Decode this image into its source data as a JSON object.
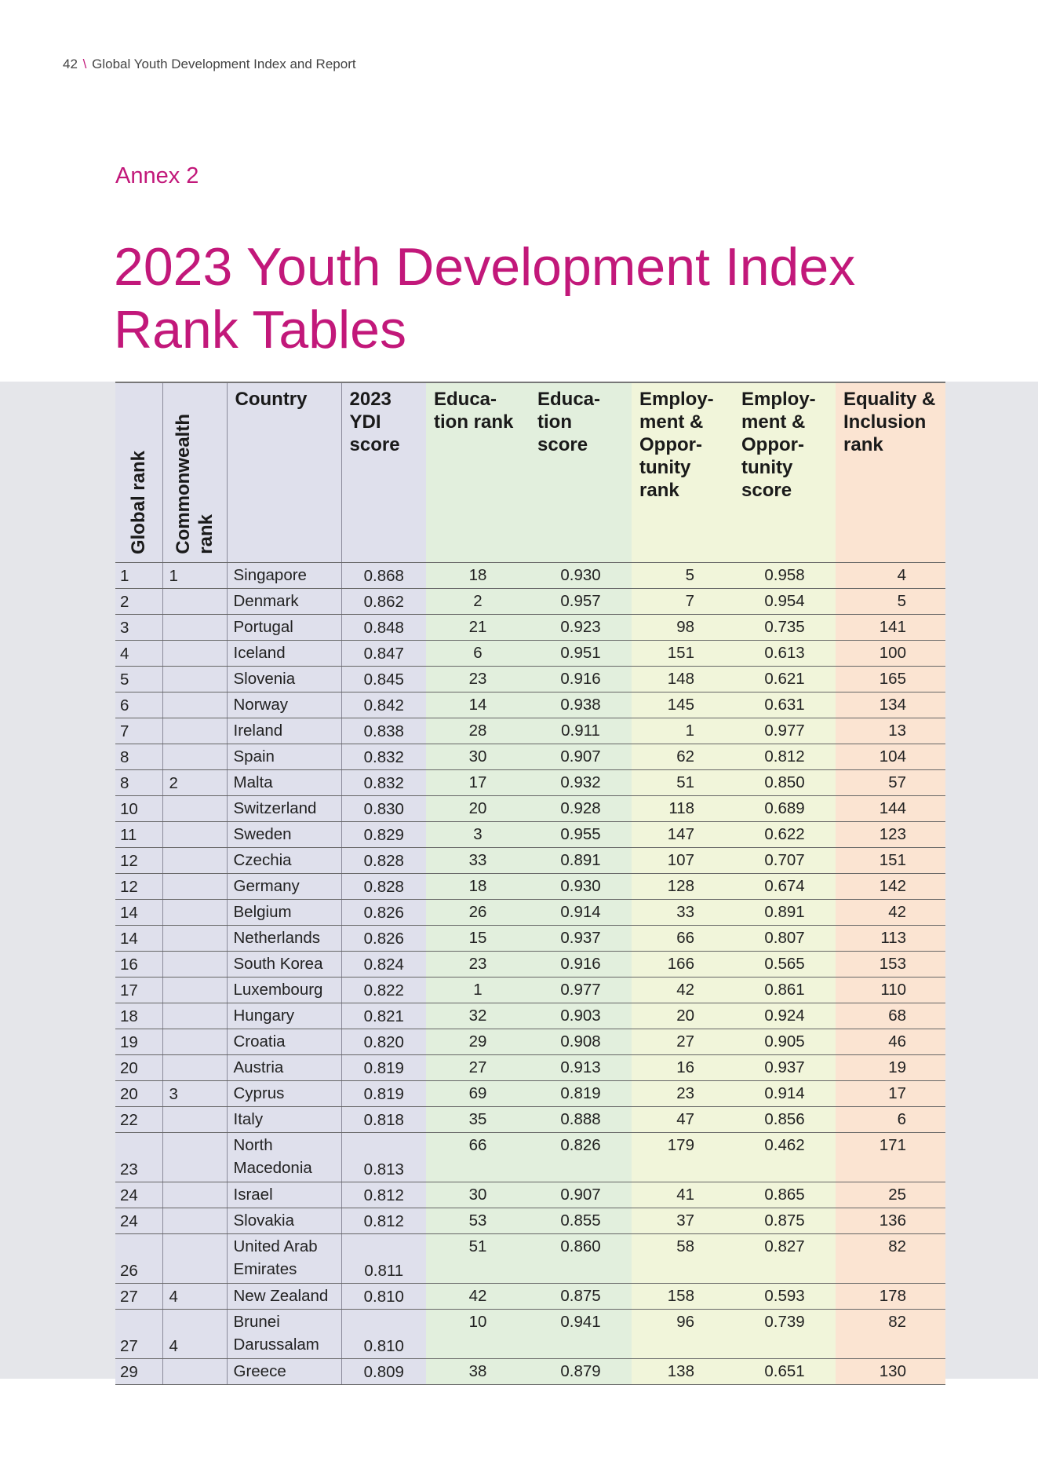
{
  "header": {
    "page_number": "42",
    "separator": "\\",
    "publication": "Global Youth Development Index and Report"
  },
  "annex_label": "Annex 2",
  "title_line1": "2023 Youth Development Index",
  "title_line2": "Rank Tables",
  "table": {
    "columns": {
      "global_rank": "Global rank",
      "commonwealth_rank_1": "Commonwealth",
      "commonwealth_rank_2": "rank",
      "country": "Country",
      "ydi_score": "2023 YDI score",
      "education_rank": "Educa-tion rank",
      "education_score": "Educa-tion score",
      "employment_rank": "Employ-ment & Oppor-tunity rank",
      "employment_score": "Employ-ment & Oppor-tunity score",
      "equality_rank": "Equality & Inclusion rank"
    },
    "colors": {
      "lavender": "#dfe0ec",
      "green": "#e2efdd",
      "yellow": "#f1f5da",
      "orange": "#fbe4d2",
      "accent": "#c2187a"
    },
    "rows": [
      {
        "global": "1",
        "cw": "1",
        "country": "Singapore",
        "ydi": "0.868",
        "edr": "18",
        "eds": "0.930",
        "emr": "5",
        "ems": "0.958",
        "eqr": "4"
      },
      {
        "global": "2",
        "cw": "",
        "country": "Denmark",
        "ydi": "0.862",
        "edr": "2",
        "eds": "0.957",
        "emr": "7",
        "ems": "0.954",
        "eqr": "5"
      },
      {
        "global": "3",
        "cw": "",
        "country": "Portugal",
        "ydi": "0.848",
        "edr": "21",
        "eds": "0.923",
        "emr": "98",
        "ems": "0.735",
        "eqr": "141"
      },
      {
        "global": "4",
        "cw": "",
        "country": "Iceland",
        "ydi": "0.847",
        "edr": "6",
        "eds": "0.951",
        "emr": "151",
        "ems": "0.613",
        "eqr": "100"
      },
      {
        "global": "5",
        "cw": "",
        "country": "Slovenia",
        "ydi": "0.845",
        "edr": "23",
        "eds": "0.916",
        "emr": "148",
        "ems": "0.621",
        "eqr": "165"
      },
      {
        "global": "6",
        "cw": "",
        "country": "Norway",
        "ydi": "0.842",
        "edr": "14",
        "eds": "0.938",
        "emr": "145",
        "ems": "0.631",
        "eqr": "134"
      },
      {
        "global": "7",
        "cw": "",
        "country": "Ireland",
        "ydi": "0.838",
        "edr": "28",
        "eds": "0.911",
        "emr": "1",
        "ems": "0.977",
        "eqr": "13"
      },
      {
        "global": "8",
        "cw": "",
        "country": "Spain",
        "ydi": "0.832",
        "edr": "30",
        "eds": "0.907",
        "emr": "62",
        "ems": "0.812",
        "eqr": "104"
      },
      {
        "global": "8",
        "cw": "2",
        "country": "Malta",
        "ydi": "0.832",
        "edr": "17",
        "eds": "0.932",
        "emr": "51",
        "ems": "0.850",
        "eqr": "57"
      },
      {
        "global": "10",
        "cw": "",
        "country": "Switzerland",
        "ydi": "0.830",
        "edr": "20",
        "eds": "0.928",
        "emr": "118",
        "ems": "0.689",
        "eqr": "144"
      },
      {
        "global": "11",
        "cw": "",
        "country": "Sweden",
        "ydi": "0.829",
        "edr": "3",
        "eds": "0.955",
        "emr": "147",
        "ems": "0.622",
        "eqr": "123"
      },
      {
        "global": "12",
        "cw": "",
        "country": "Czechia",
        "ydi": "0.828",
        "edr": "33",
        "eds": "0.891",
        "emr": "107",
        "ems": "0.707",
        "eqr": "151"
      },
      {
        "global": "12",
        "cw": "",
        "country": "Germany",
        "ydi": "0.828",
        "edr": "18",
        "eds": "0.930",
        "emr": "128",
        "ems": "0.674",
        "eqr": "142"
      },
      {
        "global": "14",
        "cw": "",
        "country": "Belgium",
        "ydi": "0.826",
        "edr": "26",
        "eds": "0.914",
        "emr": "33",
        "ems": "0.891",
        "eqr": "42"
      },
      {
        "global": "14",
        "cw": "",
        "country": "Netherlands",
        "ydi": "0.826",
        "edr": "15",
        "eds": "0.937",
        "emr": "66",
        "ems": "0.807",
        "eqr": "113"
      },
      {
        "global": "16",
        "cw": "",
        "country": "South Korea",
        "ydi": "0.824",
        "edr": "23",
        "eds": "0.916",
        "emr": "166",
        "ems": "0.565",
        "eqr": "153"
      },
      {
        "global": "17",
        "cw": "",
        "country": "Luxembourg",
        "ydi": "0.822",
        "edr": "1",
        "eds": "0.977",
        "emr": "42",
        "ems": "0.861",
        "eqr": "110"
      },
      {
        "global": "18",
        "cw": "",
        "country": "Hungary",
        "ydi": "0.821",
        "edr": "32",
        "eds": "0.903",
        "emr": "20",
        "ems": "0.924",
        "eqr": "68"
      },
      {
        "global": "19",
        "cw": "",
        "country": "Croatia",
        "ydi": "0.820",
        "edr": "29",
        "eds": "0.908",
        "emr": "27",
        "ems": "0.905",
        "eqr": "46"
      },
      {
        "global": "20",
        "cw": "",
        "country": "Austria",
        "ydi": "0.819",
        "edr": "27",
        "eds": "0.913",
        "emr": "16",
        "ems": "0.937",
        "eqr": "19"
      },
      {
        "global": "20",
        "cw": "3",
        "country": "Cyprus",
        "ydi": "0.819",
        "edr": "69",
        "eds": "0.819",
        "emr": "23",
        "ems": "0.914",
        "eqr": "17"
      },
      {
        "global": "22",
        "cw": "",
        "country": "Italy",
        "ydi": "0.818",
        "edr": "35",
        "eds": "0.888",
        "emr": "47",
        "ems": "0.856",
        "eqr": "6"
      },
      {
        "global": "23",
        "cw": "",
        "country": "North Macedonia",
        "ydi": "0.813",
        "edr": "66",
        "eds": "0.826",
        "emr": "179",
        "ems": "0.462",
        "eqr": "171"
      },
      {
        "global": "24",
        "cw": "",
        "country": "Israel",
        "ydi": "0.812",
        "edr": "30",
        "eds": "0.907",
        "emr": "41",
        "ems": "0.865",
        "eqr": "25"
      },
      {
        "global": "24",
        "cw": "",
        "country": "Slovakia",
        "ydi": "0.812",
        "edr": "53",
        "eds": "0.855",
        "emr": "37",
        "ems": "0.875",
        "eqr": "136"
      },
      {
        "global": "26",
        "cw": "",
        "country": "United Arab Emirates",
        "ydi": "0.811",
        "edr": "51",
        "eds": "0.860",
        "emr": "58",
        "ems": "0.827",
        "eqr": "82"
      },
      {
        "global": "27",
        "cw": "4",
        "country": "New Zealand",
        "ydi": "0.810",
        "edr": "42",
        "eds": "0.875",
        "emr": "158",
        "ems": "0.593",
        "eqr": "178"
      },
      {
        "global": "27",
        "cw": "4",
        "country": "Brunei Darussalam",
        "ydi": "0.810",
        "edr": "10",
        "eds": "0.941",
        "emr": "96",
        "ems": "0.739",
        "eqr": "82"
      },
      {
        "global": "29",
        "cw": "",
        "country": "Greece",
        "ydi": "0.809",
        "edr": "38",
        "eds": "0.879",
        "emr": "138",
        "ems": "0.651",
        "eqr": "130"
      }
    ]
  }
}
